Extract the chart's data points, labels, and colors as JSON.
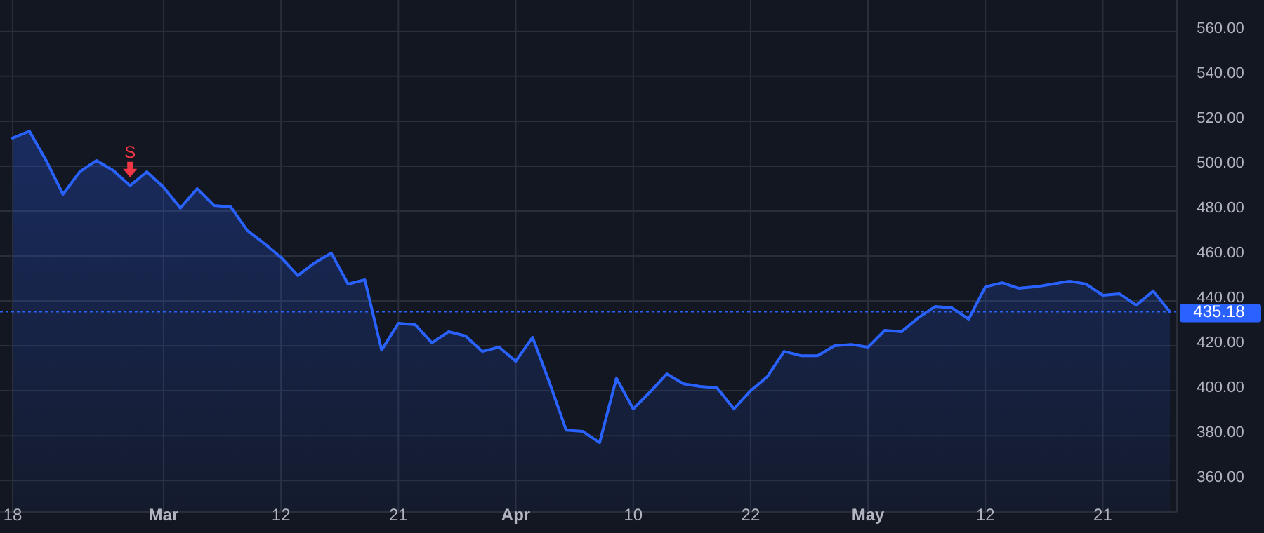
{
  "chart_data": {
    "type": "area",
    "categories": [
      "18",
      null,
      null,
      null,
      null,
      null,
      null,
      null,
      null,
      "Mar",
      null,
      null,
      null,
      null,
      null,
      null,
      "12",
      null,
      null,
      null,
      null,
      null,
      null,
      "21",
      null,
      null,
      null,
      null,
      null,
      null,
      "Apr",
      null,
      null,
      null,
      null,
      null,
      null,
      "10",
      null,
      null,
      null,
      null,
      null,
      null,
      "22",
      null,
      null,
      null,
      null,
      null,
      null,
      "May",
      null,
      null,
      null,
      null,
      null,
      null,
      "12",
      null,
      null,
      null,
      null,
      null,
      null,
      "21",
      null,
      null,
      null,
      null
    ],
    "series": [
      {
        "color": "#2962ff",
        "values": [
          512.5,
          515.6,
          502.5,
          487.5,
          497.5,
          502.5,
          498.1,
          491.3,
          497.5,
          490.6,
          481.3,
          490,
          482.5,
          481.9,
          471.3,
          465.6,
          459.4,
          451.3,
          456.9,
          461.3,
          447.5,
          449.4,
          418.1,
          430,
          429.4,
          421.3,
          426.3,
          424.4,
          417.5,
          419.4,
          413.1,
          423.8,
          403.8,
          382.5,
          381.9,
          376.9,
          405.6,
          391.9,
          399.4,
          407.5,
          403.1,
          401.9,
          401.3,
          391.9,
          400,
          406.3,
          417.5,
          415.6,
          415.6,
          420,
          420.6,
          419.4,
          426.9,
          426.3,
          432.5,
          437.5,
          436.9,
          431.9,
          446.3,
          448.1,
          445.6,
          446.3,
          447.5,
          448.8,
          447.5,
          442.5,
          443.1,
          438.1,
          444.4,
          435.18
        ]
      }
    ],
    "ylim": [
      346,
      574
    ],
    "yticks": [
      {
        "value": 360,
        "label": "360.00"
      },
      {
        "value": 380,
        "label": "380.00"
      },
      {
        "value": 400,
        "label": "400.00"
      },
      {
        "value": 420,
        "label": "420.00"
      },
      {
        "value": 440,
        "label": "440.00"
      },
      {
        "value": 460,
        "label": "460.00"
      },
      {
        "value": 480,
        "label": "480.00"
      },
      {
        "value": 500,
        "label": "500.00"
      },
      {
        "value": 520,
        "label": "520.00"
      },
      {
        "value": 540,
        "label": "540.00"
      },
      {
        "value": 560,
        "label": "560.00"
      }
    ],
    "grid": true,
    "ref_lines": [
      {
        "axis": "y",
        "value": 435.18,
        "label": "435.18",
        "color": "#2962ff",
        "line_style": "dotted"
      }
    ],
    "annotations": [
      {
        "text": "S",
        "y": 491.3
      }
    ]
  }
}
